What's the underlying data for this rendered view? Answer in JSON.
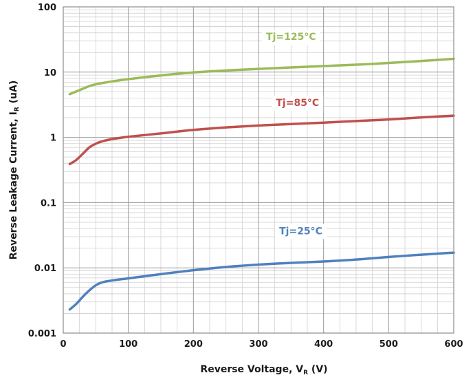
{
  "chart_data": {
    "type": "line",
    "title": "",
    "xlabel": "Reverse Voltage, V",
    "xlabel_subscript": "R",
    "xlabel_unit": " (V)",
    "ylabel": "Reverse Leakage Current, I",
    "ylabel_subscript": "R",
    "ylabel_unit": " (uA)",
    "xlim": [
      0,
      600
    ],
    "ylim": [
      0.001,
      100
    ],
    "y_scale": "log",
    "x_ticks": [
      0,
      100,
      200,
      300,
      400,
      500,
      600
    ],
    "x_tick_labels": [
      "0",
      "100",
      "200",
      "300",
      "400",
      "500",
      "600"
    ],
    "y_ticks": [
      0.001,
      0.01,
      0.1,
      1,
      10,
      100
    ],
    "y_tick_labels": [
      "0.001",
      "0.01",
      "0.1",
      "1",
      "10",
      "100"
    ],
    "grid": true,
    "legend": "none",
    "series": [
      {
        "name": "Tj=125°C",
        "color": "#9BBB59",
        "label_x": 350,
        "label_y": 35,
        "x": [
          10,
          25,
          40,
          50,
          60,
          75,
          100,
          150,
          200,
          250,
          300,
          350,
          400,
          450,
          500,
          550,
          600
        ],
        "y": [
          4.6,
          5.3,
          6.1,
          6.5,
          6.8,
          7.2,
          7.8,
          8.9,
          9.9,
          10.6,
          11.2,
          11.8,
          12.4,
          13.0,
          13.8,
          14.8,
          16.0
        ]
      },
      {
        "name": "Tj=85°C",
        "color": "#C0504D",
        "label_x": 360,
        "label_y": 3.4,
        "x": [
          10,
          20,
          30,
          40,
          50,
          60,
          75,
          100,
          150,
          200,
          250,
          300,
          350,
          400,
          450,
          500,
          550,
          600
        ],
        "y": [
          0.39,
          0.45,
          0.56,
          0.7,
          0.8,
          0.87,
          0.94,
          1.02,
          1.15,
          1.3,
          1.42,
          1.52,
          1.6,
          1.68,
          1.78,
          1.88,
          2.02,
          2.15
        ]
      },
      {
        "name": "Tj=25°C",
        "color": "#4F81BD",
        "label_x": 365,
        "label_y": 0.037,
        "x": [
          10,
          20,
          30,
          40,
          50,
          60,
          75,
          100,
          150,
          200,
          250,
          300,
          350,
          400,
          450,
          500,
          550,
          600
        ],
        "y": [
          0.0023,
          0.0028,
          0.0036,
          0.0045,
          0.0054,
          0.006,
          0.0064,
          0.0069,
          0.008,
          0.0092,
          0.0103,
          0.0112,
          0.0119,
          0.0125,
          0.0134,
          0.0147,
          0.0159,
          0.0171
        ]
      }
    ]
  }
}
